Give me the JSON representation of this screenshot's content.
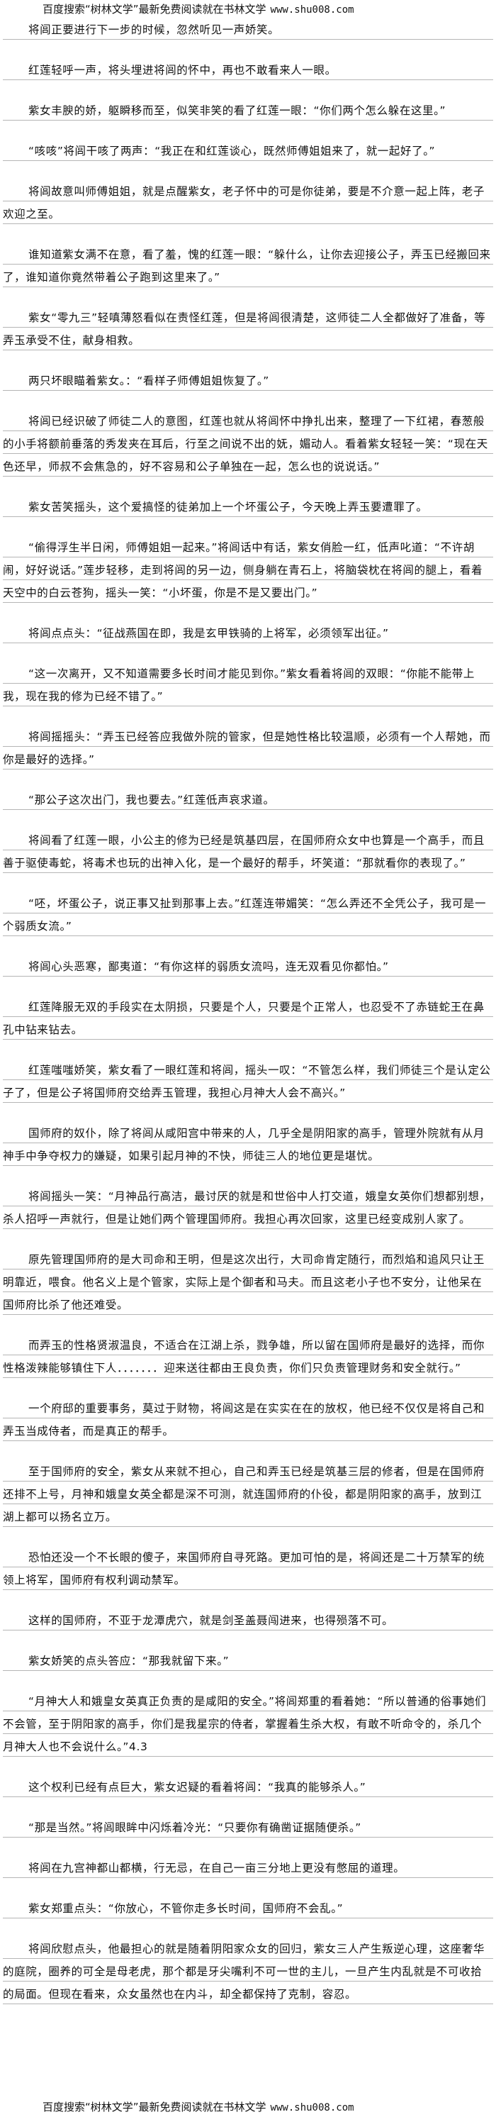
{
  "banner": {
    "text": "百度搜索“树林文学”最新免费阅读就在书林文学",
    "url": "www.shu008.com"
  },
  "paragraphs": [
    "将闾正要进行下一步的时候，忽然听见一声娇笑。",
    "红莲轻呼一声，将头埋进将闾的怀中，再也不敢看来人一眼。",
    "紫女丰腴的娇，躯瞬移而至，似笑非笑的看了红莲一眼：“你们两个怎么躲在这里。”",
    "“咳咳”将闾干咳了两声：“我正在和红莲谈心，既然师傅姐姐来了，就一起好了。”",
    "将闾故意叫师傅姐姐，就是点醒紫女，老子怀中的可是你徒弟，要是不介意一起上阵，老子欢迎之至。",
    "谁知道紫女满不在意，看了羞，愧的红莲一眼：“躲什么，让你去迎接公子，弄玉已经搬回来了，谁知道你竟然带着公子跑到这里来了。”",
    "紫女“零九三”轻嗔薄怒看似在责怪红莲，但是将闾很清楚，这师徒二人全都做好了准备，等弄玉承受不住，献身相救。",
    "两只坏眼瞄着紫女。：“看样子师傅姐姐恢复了。”",
    "将闾已经识破了师徒二人的意图，红莲也就从将闾怀中挣扎出来，整理了一下红裙，春葱般的小手将额前垂落的秀发夹在耳后，行至之间说不出的妩，媚动人。看着紫女轻轻一笑：“现在天色还早，师叔不会焦急的，好不容易和公子单独在一起，怎么也的说说话。”",
    "紫女苦笑摇头，这个爱搞怪的徒弟加上一个坏蛋公子，今天晚上弄玉要遭罪了。",
    "“偷得浮生半日闲，师傅姐姐一起来。”将闾话中有话，紫女俏脸一红，低声叱道：“不许胡闹，好好说话。”莲步轻移，走到将闾的另一边，侧身躺在青石上，将脑袋枕在将闾的腿上，看着天空中的白云苍狗，摇头一笑：“小坏蛋，你是不是又要出门。”",
    "将闾点点头：“征战燕国在即，我是玄甲铁骑的上将军，必须领军出征。”",
    "“这一次离开，又不知道需要多长时间才能见到你。”紫女看着将闾的双眼：“你能不能带上我，现在我的修为已经不错了。”",
    "将闾摇摇头：“弄玉已经答应我做外院的管家，但是她性格比较温顺，必须有一个人帮她，而你是最好的选择。”",
    "“那公子这次出门，我也要去。”红莲低声哀求道。",
    "将闾看了红莲一眼，小公主的修为已经是筑基四层，在国师府众女中也算是一个高手，而且善于驱使毒蛇，将毒术也玩的出神入化，是一个最好的帮手，坏笑道：“那就看你的表现了。”",
    "“呸，坏蛋公子，说正事又扯到那事上去。”红莲连带媚笑：“怎么弄还不全凭公子，我可是一个弱质女流。”",
    "将闾心头恶寒，鄙夷道：“有你这样的弱质女流吗，连无双看见你都怕。”",
    "红莲降服无双的手段实在太阴损，只要是个人，只要是个正常人，也忍受不了赤链蛇王在鼻孔中钻来钻去。",
    "红莲嗤嗤娇笑，紫女看了一眼红莲和将闾，摇头一叹：“不管怎么样，我们师徒三个是认定公子了，但是公子将国师府交给弄玉管理，我担心月神大人会不高兴。”",
    "国师府的奴仆，除了将闾从咸阳宫中带来的人，几乎全是阴阳家的高手，管理外院就有从月神手中争夺权力的嫌疑，如果引起月神的不快，师徒三人的地位更是堪忧。",
    "将闾摇头一笑：“月神品行高洁，最讨厌的就是和世俗中人打交道，娥皇女英你们想都别想，杀人招呼一声就行，但是让她们两个管理国师府。我担心再次回家，这里已经变成别人家了。",
    "原先管理国师府的是大司命和王明，但是这次出行，大司命肯定随行，而烈焰和追风只让王明靠近，喂食。他名义上是个管家，实际上是个御者和马夫。而且这老小子也不安分，让他呆在国师府比杀了他还难受。",
    "而弄玉的性格贤淑温良，不适合在江湖上杀，戮争雄，所以留在国师府是最好的选择，而你性格泼辣能够镇住下人．．．．．．．迎来送往都由王良负责，你们只负责管理财务和安全就行。”",
    "一个府邸的重要事务，莫过于财物，将闾这是在实实在在的放权，他已经不仅仅是将自己和弄玉当成侍者，而是真正的帮手。",
    "至于国师府的安全，紫女从来就不担心，自己和弄玉已经是筑基三层的修者，但是在国师府还排不上号，月神和娥皇女英全都是深不可测，就连国师府的仆役，都是阴阳家的高手，放到江湖上都可以扬名立万。",
    "恐怕还没一个不长眼的傻子，来国师府自寻死路。更加可怕的是，将闾还是二十万禁军的统领上将军，国师府有权利调动禁军。",
    "这样的国师府，不亚于龙潭虎穴，就是剑圣盖聂闯进来，也得殒落不可。",
    "紫女娇笑的点头答应：“那我就留下来。”",
    "“月神大人和娥皇女英真正负责的是咸阳的安全。”将闾郑重的看着她：“所以普通的俗事她们不会管，至于阴阳家的高手，你们是我星宗的侍者，掌握着生杀大权，有敢不听命令的，杀几个月神大人也不会说什么。”4.3",
    "这个权利已经有点巨大，紫女迟疑的看着将闾：“我真的能够杀人。”",
    "“那是当然。”将闾眼眸中闪烁着冷光：“只要你有确凿证据随便杀。”",
    "将闾在九宫神都山都横，行无忌，在自己一亩三分地上更没有憋屈的道理。",
    "紫女郑重点头：“你放心，不管你走多长时间，国师府不会乱。”",
    "将闾欣慰点头，他最担心的就是随着阴阳家众女的回归，紫女三人产生叛逆心理，这座奢华的庭院，圈养的可全是母老虎，那个都是牙尖嘴利不可一世的主儿，一旦产生内乱就是不可收拾的局面。但现在看来，众女虽然也在内斗，却全都保持了克制，容忍。"
  ]
}
